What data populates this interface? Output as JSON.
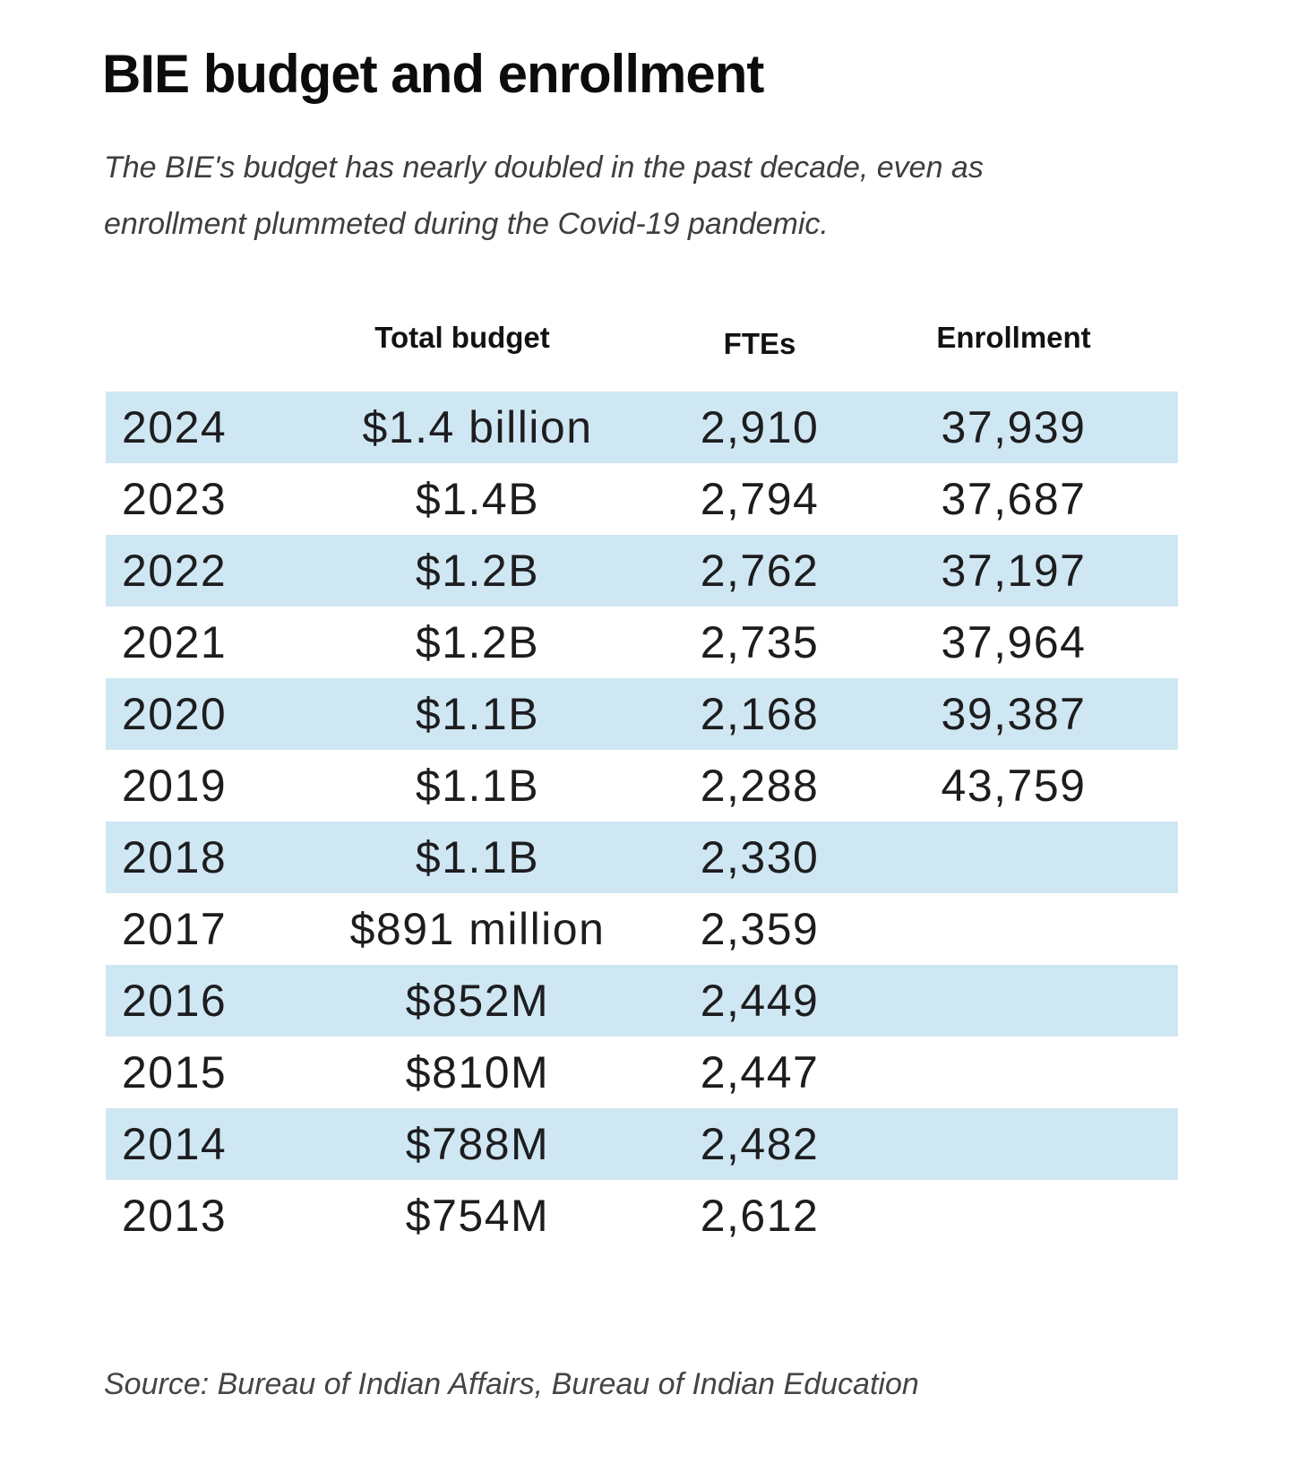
{
  "title": "BIE budget and enrollment",
  "subtitle": "The BIE's budget has nearly doubled in the past decade, even as enrollment plummeted during the Covid-19 pandemic.",
  "source": "Source: Bureau of Indian Affairs, Bureau of Indian Education",
  "highlight_color": "#cfe7f3",
  "chart_data": {
    "type": "table",
    "title": "BIE budget and enrollment",
    "subtitle": "The BIE's budget has nearly doubled in the past decade, even as enrollment plummeted during the Covid-19 pandemic.",
    "headers": {
      "year": "",
      "budget": "Total budget",
      "ftes": "FTEs",
      "enrollment": "Enrollment"
    },
    "rows": [
      {
        "year": "2024",
        "budget": "$1.4 billion",
        "ftes": "2,910",
        "enrollment": "37,939"
      },
      {
        "year": "2023",
        "budget": "$1.4B",
        "ftes": "2,794",
        "enrollment": "37,687"
      },
      {
        "year": "2022",
        "budget": "$1.2B",
        "ftes": "2,762",
        "enrollment": "37,197"
      },
      {
        "year": "2021",
        "budget": "$1.2B",
        "ftes": "2,735",
        "enrollment": "37,964"
      },
      {
        "year": "2020",
        "budget": "$1.1B",
        "ftes": "2,168",
        "enrollment": "39,387"
      },
      {
        "year": "2019",
        "budget": "$1.1B",
        "ftes": "2,288",
        "enrollment": "43,759"
      },
      {
        "year": "2018",
        "budget": "$1.1B",
        "ftes": "2,330",
        "enrollment": ""
      },
      {
        "year": "2017",
        "budget": "$891 million",
        "ftes": "2,359",
        "enrollment": ""
      },
      {
        "year": "2016",
        "budget": "$852M",
        "ftes": "2,449",
        "enrollment": ""
      },
      {
        "year": "2015",
        "budget": "$810M",
        "ftes": "2,447",
        "enrollment": ""
      },
      {
        "year": "2014",
        "budget": "$788M",
        "ftes": "2,482",
        "enrollment": ""
      },
      {
        "year": "2013",
        "budget": "$754M",
        "ftes": "2,612",
        "enrollment": ""
      }
    ],
    "striped_rows": [
      2024,
      2022,
      2020,
      2018,
      2016,
      2014
    ],
    "source": "Source: Bureau of Indian Affairs, Bureau of Indian Education",
    "legend_position": "none",
    "grid": false
  }
}
